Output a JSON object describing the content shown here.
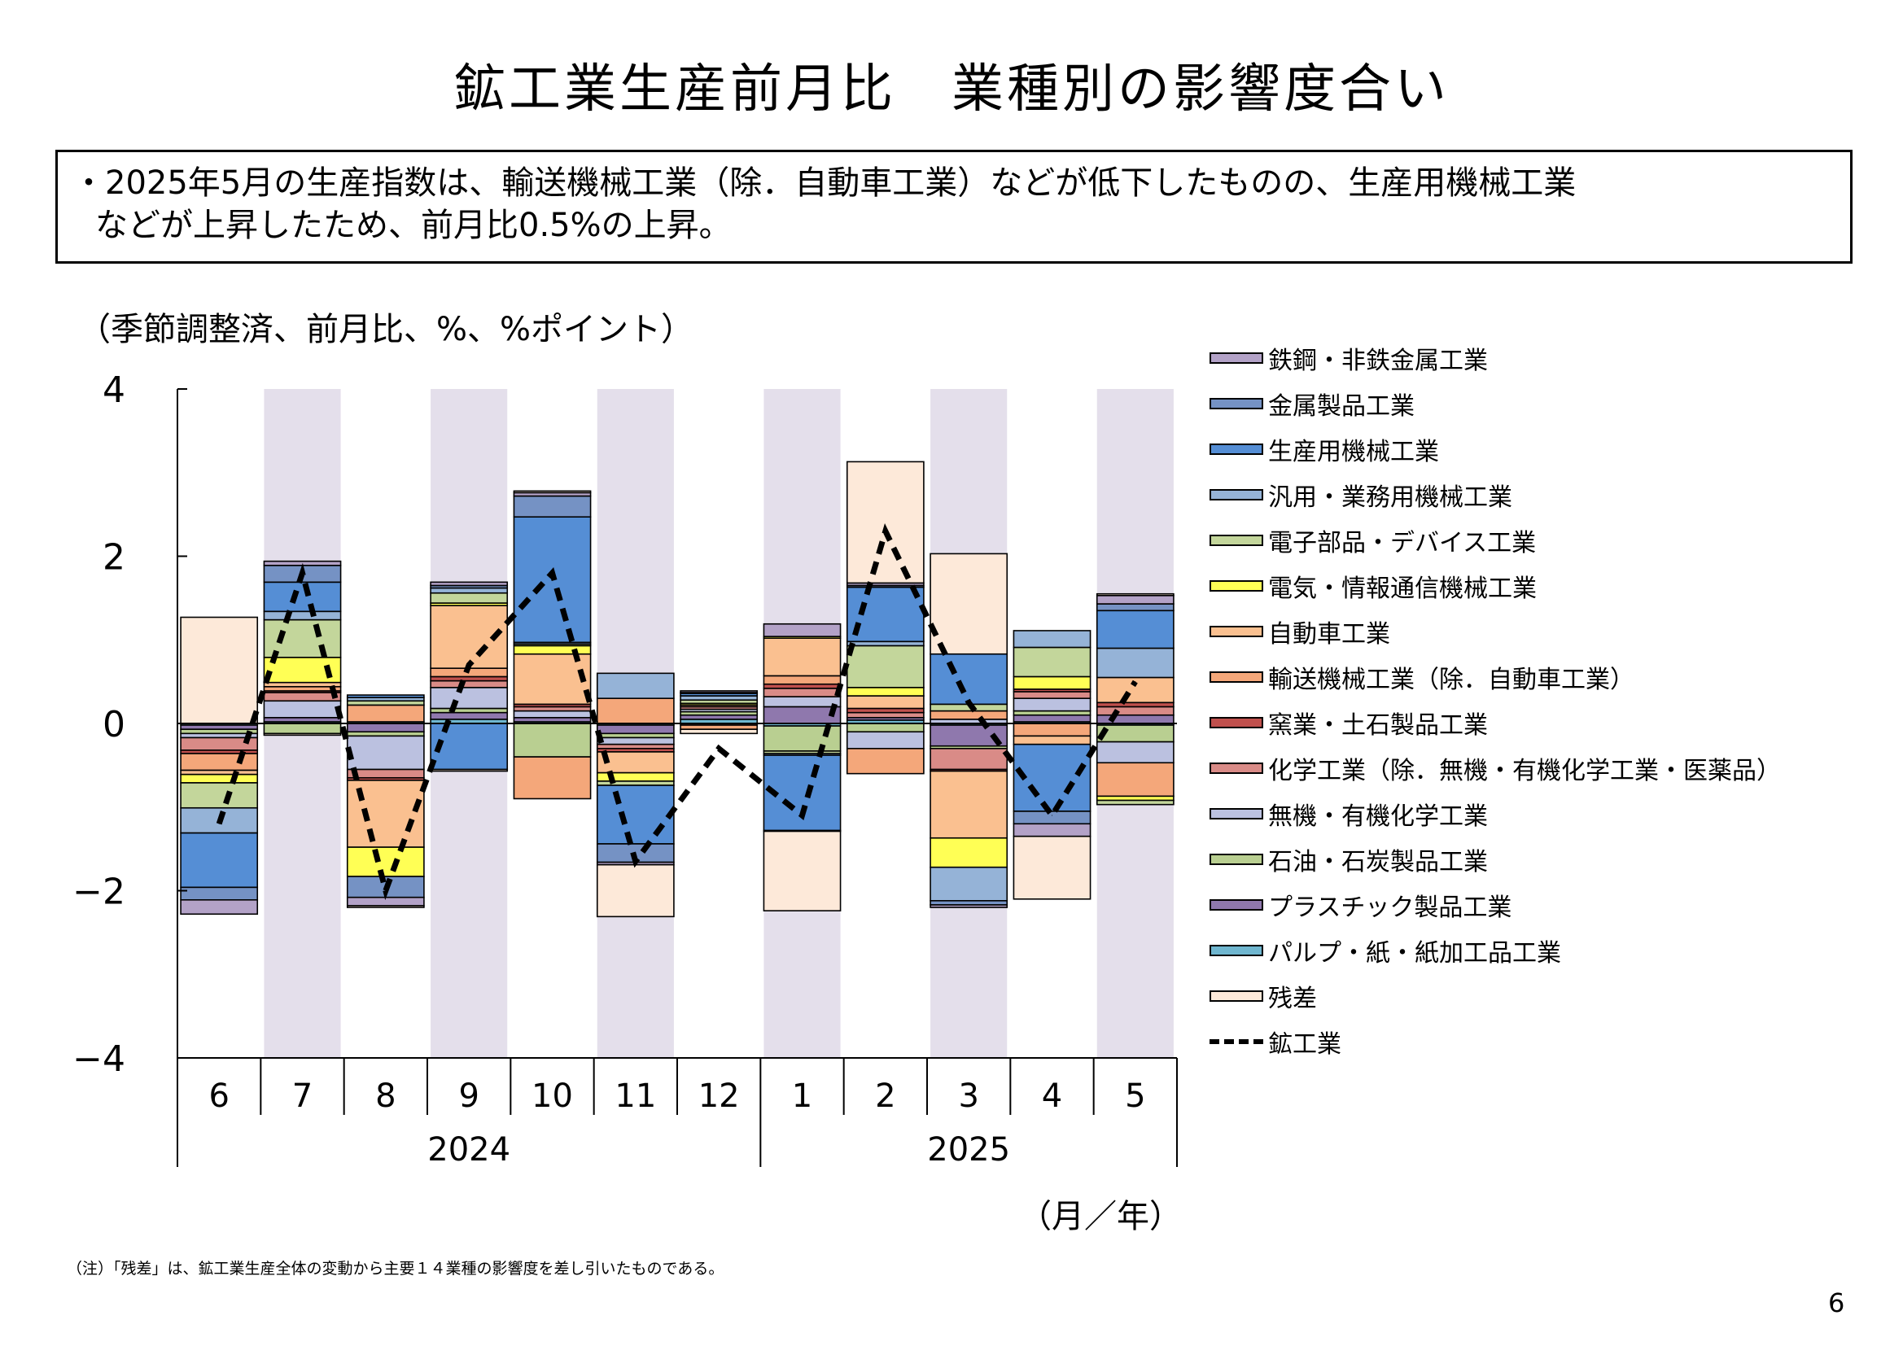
{
  "page": {
    "title": "鉱工業生産前月比　業種別の影響度合い",
    "summary_line1": "・2025年5月の生産指数は、輸送機械工業（除．自動車工業）などが低下したものの、生産用機械工業",
    "summary_line2": "などが上昇したため、前月比0.5%の上昇。",
    "unit_label": "（季節調整済、前月比、%、%ポイント）",
    "xaxis_unit": "（月／年）",
    "note": "（注）「残差」は、鉱工業生産全体の変動から主要１４業種の影響度を差し引いたものである。",
    "page_number": "6"
  },
  "chart_data": {
    "type": "bar",
    "stacked": true,
    "categories": [
      "6",
      "7",
      "8",
      "9",
      "10",
      "11",
      "12",
      "1",
      "2",
      "3",
      "4",
      "5"
    ],
    "years": [
      {
        "label": "2024",
        "start_index": 0,
        "end_index": 6
      },
      {
        "label": "2025",
        "start_index": 7,
        "end_index": 11
      }
    ],
    "ylim": [
      -4,
      4
    ],
    "yticks": [
      4,
      2,
      0,
      -2,
      -4
    ],
    "ytick_labels": [
      "4",
      "2",
      "0",
      "−2",
      "−4"
    ],
    "shaded_categories": [
      1,
      3,
      5,
      7,
      9,
      11
    ],
    "shade_color": "#e4dfeb",
    "series": [
      {
        "name": "パルプ・紙・紙加工品工業",
        "color": "#6fb6cf",
        "values": [
          -0.02,
          0.02,
          0.02,
          0.05,
          0.02,
          -0.02,
          0.05,
          -0.03,
          0.04,
          -0.02,
          0.02,
          -0.02
        ]
      },
      {
        "name": "プラスチック製品工業",
        "color": "#8f78ad",
        "values": [
          -0.05,
          0.05,
          -0.1,
          0.08,
          0.05,
          -0.1,
          0.05,
          0.2,
          0.03,
          -0.25,
          0.08,
          0.1
        ]
      },
      {
        "name": "石油・石炭製品工業",
        "color": "#b9cf91",
        "values": [
          -0.05,
          -0.12,
          -0.05,
          0.05,
          -0.4,
          -0.05,
          0.04,
          -0.3,
          -0.1,
          -0.03,
          0.05,
          -0.2
        ]
      },
      {
        "name": "無機・有機化学工業",
        "color": "#bbc1e0",
        "values": [
          -0.05,
          0.2,
          -0.4,
          0.25,
          0.08,
          -0.08,
          0.03,
          0.12,
          -0.2,
          0.05,
          0.15,
          -0.25
        ]
      },
      {
        "name": "化学工業（除．無機・有機化学工業・医薬品）",
        "color": "#d98b87",
        "values": [
          -0.15,
          0.1,
          -0.1,
          0.08,
          0.05,
          -0.05,
          0.03,
          0.1,
          0.06,
          -0.25,
          0.08,
          0.1
        ]
      },
      {
        "name": "窯業・土石製品工業",
        "color": "#c0504d",
        "values": [
          -0.04,
          0.02,
          -0.03,
          0.05,
          0.03,
          -0.04,
          -0.02,
          0.05,
          0.05,
          -0.02,
          0.03,
          0.05
        ]
      },
      {
        "name": "輸送機械工業（除．自動車工業）",
        "color": "#f4a77a",
        "values": [
          -0.2,
          0.05,
          0.2,
          0.1,
          -0.5,
          0.3,
          -0.05,
          0.1,
          -0.3,
          0.1,
          -0.15,
          -0.4
        ]
      },
      {
        "name": "自動車工業",
        "color": "#fac090",
        "values": [
          -0.05,
          0.05,
          -0.8,
          0.75,
          0.6,
          -0.25,
          0.02,
          0.45,
          0.15,
          -0.8,
          -0.1,
          0.3
        ]
      },
      {
        "name": "電気・情報通信機械工業",
        "color": "#ffff55",
        "values": [
          -0.1,
          0.3,
          -0.35,
          0.03,
          0.1,
          -0.1,
          0.02,
          0.02,
          0.1,
          -0.35,
          0.15,
          -0.05
        ]
      },
      {
        "name": "電子部品・デバイス工業",
        "color": "#c3d69b",
        "values": [
          -0.3,
          0.45,
          0.05,
          0.12,
          0.02,
          -0.05,
          0.04,
          -0.03,
          0.5,
          0.08,
          0.35,
          -0.05
        ]
      },
      {
        "name": "汎用・業務用機械工業",
        "color": "#95b3d7",
        "values": [
          -0.3,
          0.1,
          0.04,
          0.06,
          0.02,
          0.3,
          0.05,
          -0.02,
          0.05,
          -0.4,
          0.2,
          0.35
        ]
      },
      {
        "name": "生産用機械工業",
        "color": "#558ed5",
        "values": [
          -0.65,
          0.35,
          0.03,
          -0.55,
          1.5,
          -0.7,
          0.03,
          -0.9,
          0.65,
          0.6,
          -0.8,
          0.45
        ]
      },
      {
        "name": "金属製品工業",
        "color": "#7592c4",
        "values": [
          -0.15,
          0.2,
          -0.25,
          0.03,
          0.25,
          -0.22,
          0.01,
          -0.01,
          0.02,
          -0.05,
          -0.15,
          0.08
        ]
      },
      {
        "name": "鉄鋼・非鉄金属工業",
        "color": "#b3a2c7",
        "values": [
          -0.17,
          0.05,
          -0.1,
          0.04,
          0.04,
          -0.03,
          0.02,
          0.15,
          0.03,
          -0.03,
          -0.15,
          0.1
        ]
      },
      {
        "name": "残差",
        "color": "#fde9d9",
        "values": [
          1.27,
          -0.02,
          -0.02,
          -0.02,
          0.02,
          -0.62,
          -0.05,
          -0.95,
          1.45,
          1.2,
          -0.75,
          0.02
        ]
      }
    ],
    "line_series": {
      "name": "鉱工業",
      "style": "dashed",
      "color": "#000000",
      "values": [
        -1.2,
        1.8,
        -2.0,
        0.7,
        1.8,
        -1.65,
        -0.3,
        -1.1,
        2.3,
        0.25,
        -1.1,
        0.5
      ]
    },
    "legend_order": [
      "鉄鋼・非鉄金属工業",
      "金属製品工業",
      "生産用機械工業",
      "汎用・業務用機械工業",
      "電子部品・デバイス工業",
      "電気・情報通信機械工業",
      "自動車工業",
      "輸送機械工業（除．自動車工業）",
      "窯業・土石製品工業",
      "化学工業（除．無機・有機化学工業・医薬品）",
      "無機・有機化学工業",
      "石油・石炭製品工業",
      "プラスチック製品工業",
      "パルプ・紙・紙加工品工業",
      "残差",
      "鉱工業"
    ],
    "legend_position": "right",
    "grid": false
  }
}
